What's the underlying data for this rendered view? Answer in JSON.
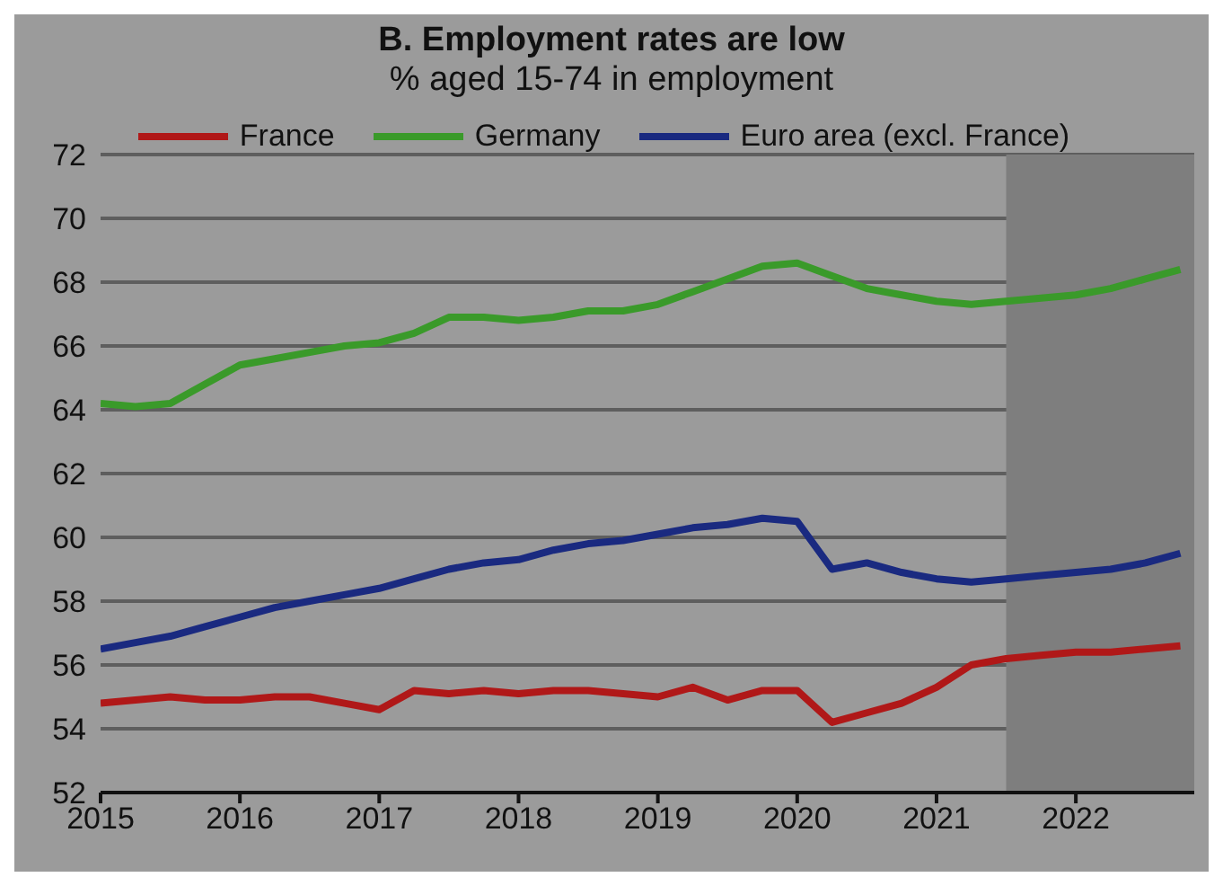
{
  "chart_data": {
    "type": "line",
    "title": "B. Employment rates are low",
    "subtitle": "% aged 15-74 in employment",
    "x": [
      2015,
      2015.25,
      2015.5,
      2015.75,
      2016,
      2016.25,
      2016.5,
      2016.75,
      2017,
      2017.25,
      2017.5,
      2017.75,
      2018,
      2018.25,
      2018.5,
      2018.75,
      2019,
      2019.25,
      2019.5,
      2019.75,
      2020,
      2020.25,
      2020.5,
      2020.75,
      2021,
      2021.25,
      2021.5,
      2021.75,
      2022,
      2022.25,
      2022.5,
      2022.75
    ],
    "series": [
      {
        "name": "France",
        "color": "#b01818",
        "values": [
          54.8,
          54.9,
          55.0,
          54.9,
          54.9,
          55.0,
          55.0,
          54.8,
          54.6,
          55.2,
          55.1,
          55.2,
          55.1,
          55.2,
          55.2,
          55.1,
          55.0,
          55.3,
          54.9,
          55.2,
          55.2,
          54.2,
          54.5,
          54.8,
          55.3,
          56.0,
          56.2,
          56.3,
          56.4,
          56.4,
          56.5,
          56.6
        ]
      },
      {
        "name": "Germany",
        "color": "#3a9a2a",
        "values": [
          64.2,
          64.1,
          64.2,
          64.8,
          65.4,
          65.6,
          65.8,
          66.0,
          66.1,
          66.4,
          66.9,
          66.9,
          66.8,
          66.9,
          67.1,
          67.1,
          67.3,
          67.7,
          68.1,
          68.5,
          68.6,
          68.2,
          67.8,
          67.6,
          67.4,
          67.3,
          67.4,
          67.5,
          67.6,
          67.8,
          68.1,
          68.4
        ]
      },
      {
        "name": "Euro area (excl. France)",
        "color": "#1a2a80",
        "values": [
          56.5,
          56.7,
          56.9,
          57.2,
          57.5,
          57.8,
          58.0,
          58.2,
          58.4,
          58.7,
          59.0,
          59.2,
          59.3,
          59.6,
          59.8,
          59.9,
          60.1,
          60.3,
          60.4,
          60.6,
          60.5,
          59.0,
          59.2,
          58.9,
          58.7,
          58.6,
          58.7,
          58.8,
          58.9,
          59.0,
          59.2,
          59.5
        ]
      }
    ],
    "xlim": [
      2015,
      2022.85
    ],
    "xticks": [
      2015,
      2016,
      2017,
      2018,
      2019,
      2020,
      2021,
      2022
    ],
    "ylim": [
      52,
      72
    ],
    "yticks": [
      52,
      54,
      56,
      58,
      60,
      62,
      64,
      66,
      68,
      70,
      72
    ],
    "bands": [
      {
        "axis": "x",
        "from": 2021.5,
        "to": 2022.85,
        "label": null,
        "color": "#7e7e7e"
      }
    ],
    "grid": "y",
    "legend": "top",
    "line_style": "solid",
    "marker": "none"
  }
}
